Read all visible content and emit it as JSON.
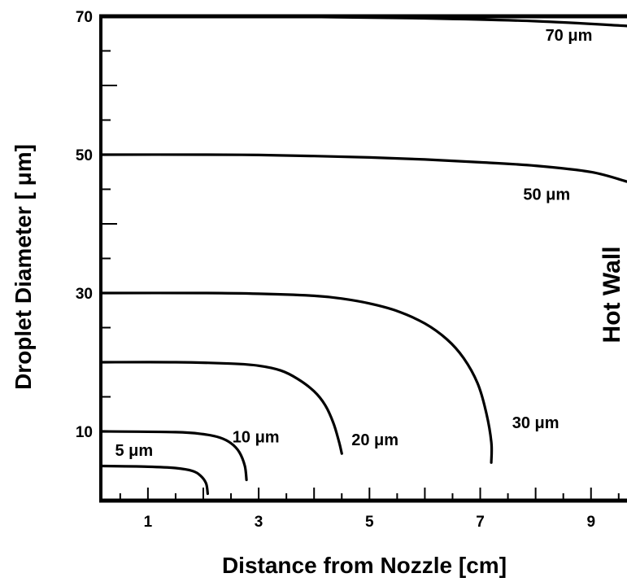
{
  "chart_data": {
    "type": "line",
    "title": "",
    "xlabel": "Distance from Nozzle [cm]",
    "ylabel": "Droplet Diameter [ μm]",
    "xlim": [
      0.15,
      9.65
    ],
    "ylim": [
      0,
      70
    ],
    "x_ticks": [
      1,
      3,
      5,
      7,
      9
    ],
    "y_ticks": [
      10,
      30,
      50,
      70
    ],
    "grid": false,
    "legend": "none",
    "annotation": "Hot Wall",
    "series": [
      {
        "name": "70 μm",
        "points": [
          [
            0.15,
            70
          ],
          [
            2,
            70
          ],
          [
            4,
            69.9
          ],
          [
            6,
            69.7
          ],
          [
            8,
            69.3
          ],
          [
            9.65,
            68.6
          ]
        ]
      },
      {
        "name": "50 μm",
        "points": [
          [
            0.15,
            50
          ],
          [
            2,
            50
          ],
          [
            3,
            49.95
          ],
          [
            4,
            49.8
          ],
          [
            5,
            49.6
          ],
          [
            6,
            49.3
          ],
          [
            7,
            48.9
          ],
          [
            8,
            48.4
          ],
          [
            9,
            47.5
          ],
          [
            9.65,
            46.1
          ]
        ]
      },
      {
        "name": "30 μm",
        "points": [
          [
            0.15,
            30
          ],
          [
            2,
            30
          ],
          [
            3,
            29.9
          ],
          [
            4,
            29.6
          ],
          [
            4.5,
            29.2
          ],
          [
            5,
            28.5
          ],
          [
            5.5,
            27.4
          ],
          [
            6,
            25.6
          ],
          [
            6.4,
            23.3
          ],
          [
            6.7,
            20.6
          ],
          [
            6.95,
            17
          ],
          [
            7.1,
            13
          ],
          [
            7.2,
            8.5
          ],
          [
            7.2,
            5.5
          ]
        ]
      },
      {
        "name": "20 μm",
        "points": [
          [
            0.15,
            20
          ],
          [
            1.5,
            20
          ],
          [
            2.5,
            19.8
          ],
          [
            3,
            19.5
          ],
          [
            3.4,
            18.8
          ],
          [
            3.7,
            17.6
          ],
          [
            4,
            15.8
          ],
          [
            4.2,
            13.8
          ],
          [
            4.35,
            11.2
          ],
          [
            4.45,
            8.5
          ],
          [
            4.5,
            6.8
          ]
        ]
      },
      {
        "name": "10 μm",
        "points": [
          [
            0.15,
            10
          ],
          [
            1.5,
            9.9
          ],
          [
            2,
            9.6
          ],
          [
            2.3,
            9.1
          ],
          [
            2.5,
            8.3
          ],
          [
            2.65,
            7
          ],
          [
            2.75,
            5
          ],
          [
            2.78,
            3
          ]
        ]
      },
      {
        "name": "5 μm",
        "points": [
          [
            0.15,
            5
          ],
          [
            1,
            4.9
          ],
          [
            1.5,
            4.7
          ],
          [
            1.8,
            4.3
          ],
          [
            1.95,
            3.6
          ],
          [
            2.05,
            2.5
          ],
          [
            2.08,
            1
          ]
        ]
      }
    ],
    "curve_labels": [
      {
        "text": "70 μm",
        "x": 8.6,
        "y": 66.5
      },
      {
        "text": "50 μm",
        "x": 8.2,
        "y": 43.5
      },
      {
        "text": "30 μm",
        "x": 8.0,
        "y": 10.5
      },
      {
        "text": "20 μm",
        "x": 5.1,
        "y": 8.0
      },
      {
        "text": "10 μm",
        "x": 2.95,
        "y": 8.4
      },
      {
        "text": "5 μm",
        "x": 0.75,
        "y": 6.5
      }
    ]
  }
}
